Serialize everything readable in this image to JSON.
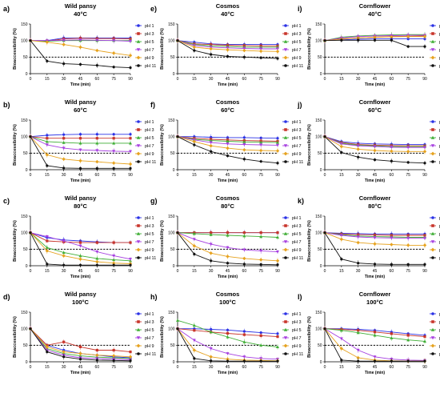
{
  "figure": {
    "xlabel": "Time (min)",
    "ylabel": "Bioaccessibility (%)",
    "legend_labels": [
      "pH 1",
      "pH 3",
      "pH 5",
      "pH 7",
      "pH 9",
      "pH 11"
    ],
    "colors": [
      "#2b32e6",
      "#c8352b",
      "#3fae35",
      "#a63fe0",
      "#e6a21e",
      "#111111"
    ]
  },
  "chart_data": [
    {
      "type": "line",
      "letter": "a)",
      "title": "Wild pansy",
      "subtitle": "40°C",
      "x": [
        0,
        15,
        30,
        45,
        60,
        75,
        90
      ],
      "xlim": [
        0,
        90
      ],
      "ylim": [
        0,
        150
      ],
      "yticks": [
        0,
        50,
        100,
        150
      ],
      "reference_line": 50,
      "legend": "right",
      "series": [
        {
          "name": "pH 1",
          "values": [
            100,
            100,
            108,
            108,
            108,
            108,
            108
          ]
        },
        {
          "name": "pH 3",
          "values": [
            100,
            98,
            105,
            107,
            106,
            106,
            105
          ]
        },
        {
          "name": "pH 5",
          "values": [
            100,
            98,
            100,
            100,
            100,
            100,
            100
          ]
        },
        {
          "name": "pH 7",
          "values": [
            100,
            100,
            101,
            102,
            101,
            100,
            98
          ]
        },
        {
          "name": "pH 9",
          "values": [
            100,
            95,
            88,
            80,
            70,
            62,
            55
          ]
        },
        {
          "name": "pH 11",
          "values": [
            100,
            38,
            30,
            28,
            25,
            20,
            18
          ]
        }
      ]
    },
    {
      "type": "line",
      "letter": "b)",
      "title": "Wild pansy",
      "subtitle": "60°C",
      "x": [
        0,
        15,
        30,
        45,
        60,
        75,
        90
      ],
      "xlim": [
        0,
        90
      ],
      "ylim": [
        0,
        150
      ],
      "yticks": [
        0,
        50,
        100,
        150
      ],
      "reference_line": 50,
      "legend": "right",
      "series": [
        {
          "name": "pH 1",
          "values": [
            100,
            104,
            106,
            107,
            107,
            107,
            107
          ]
        },
        {
          "name": "pH 3",
          "values": [
            100,
            95,
            95,
            95,
            95,
            95,
            95
          ]
        },
        {
          "name": "pH 5",
          "values": [
            100,
            85,
            82,
            80,
            80,
            80,
            80
          ]
        },
        {
          "name": "pH 7",
          "values": [
            100,
            75,
            65,
            60,
            58,
            56,
            55
          ]
        },
        {
          "name": "pH 9",
          "values": [
            100,
            45,
            32,
            27,
            24,
            20,
            17
          ]
        },
        {
          "name": "pH 11",
          "values": [
            100,
            12,
            5,
            4,
            4,
            4,
            4
          ]
        }
      ]
    },
    {
      "type": "line",
      "letter": "c)",
      "title": "Wild pansy",
      "subtitle": "80°C",
      "x": [
        0,
        15,
        30,
        45,
        60,
        75,
        90
      ],
      "xlim": [
        0,
        90
      ],
      "ylim": [
        0,
        150
      ],
      "yticks": [
        0,
        50,
        100,
        150
      ],
      "reference_line": 50,
      "legend": "right",
      "series": [
        {
          "name": "pH 1",
          "values": [
            100,
            85,
            78,
            75,
            72,
            70,
            70
          ]
        },
        {
          "name": "pH 3",
          "values": [
            100,
            75,
            72,
            70,
            70,
            70,
            70
          ]
        },
        {
          "name": "pH 5",
          "values": [
            100,
            55,
            40,
            30,
            22,
            18,
            15
          ]
        },
        {
          "name": "pH 7",
          "values": [
            100,
            88,
            75,
            60,
            42,
            30,
            20
          ]
        },
        {
          "name": "pH 9",
          "values": [
            100,
            45,
            30,
            20,
            12,
            8,
            6
          ]
        },
        {
          "name": "pH 11",
          "values": [
            100,
            5,
            2,
            2,
            2,
            2,
            2
          ]
        }
      ]
    },
    {
      "type": "line",
      "letter": "d)",
      "title": "Wild pansy",
      "subtitle": "100°C",
      "x": [
        0,
        15,
        30,
        45,
        60,
        75,
        90
      ],
      "xlim": [
        0,
        90
      ],
      "ylim": [
        0,
        150
      ],
      "yticks": [
        0,
        50,
        100,
        150
      ],
      "reference_line": 50,
      "legend": "right",
      "series": [
        {
          "name": "pH 1",
          "values": [
            100,
            50,
            35,
            25,
            20,
            15,
            12
          ]
        },
        {
          "name": "pH 3",
          "values": [
            100,
            50,
            60,
            45,
            35,
            35,
            30
          ]
        },
        {
          "name": "pH 5",
          "values": [
            100,
            40,
            25,
            18,
            14,
            12,
            10
          ]
        },
        {
          "name": "pH 7",
          "values": [
            100,
            35,
            20,
            12,
            10,
            8,
            6
          ]
        },
        {
          "name": "pH 9",
          "values": [
            100,
            45,
            30,
            25,
            20,
            18,
            15
          ]
        },
        {
          "name": "pH 11",
          "values": [
            100,
            30,
            15,
            8,
            5,
            4,
            3
          ]
        }
      ]
    },
    {
      "type": "line",
      "letter": "e)",
      "title": "Cosmos",
      "subtitle": "40°C",
      "x": [
        0,
        15,
        30,
        45,
        60,
        75,
        90
      ],
      "xlim": [
        0,
        90
      ],
      "ylim": [
        0,
        150
      ],
      "yticks": [
        0,
        50,
        100,
        150
      ],
      "reference_line": 50,
      "legend": "right",
      "series": [
        {
          "name": "pH 1",
          "values": [
            100,
            95,
            90,
            88,
            88,
            88,
            88
          ]
        },
        {
          "name": "pH 3",
          "values": [
            100,
            90,
            88,
            86,
            85,
            84,
            84
          ]
        },
        {
          "name": "pH 5",
          "values": [
            100,
            88,
            84,
            82,
            80,
            80,
            80
          ]
        },
        {
          "name": "pH 7",
          "values": [
            100,
            85,
            80,
            78,
            76,
            75,
            75
          ]
        },
        {
          "name": "pH 9",
          "values": [
            100,
            80,
            75,
            72,
            70,
            68,
            67
          ]
        },
        {
          "name": "pH 11",
          "values": [
            100,
            70,
            58,
            52,
            50,
            48,
            46
          ]
        }
      ]
    },
    {
      "type": "line",
      "letter": "f)",
      "title": "Cosmos",
      "subtitle": "60°C",
      "x": [
        0,
        15,
        30,
        45,
        60,
        75,
        90
      ],
      "xlim": [
        0,
        90
      ],
      "ylim": [
        0,
        150
      ],
      "yticks": [
        0,
        50,
        100,
        150
      ],
      "reference_line": 50,
      "legend": "right",
      "series": [
        {
          "name": "pH 1",
          "values": [
            100,
            100,
            98,
            97,
            97,
            96,
            95
          ]
        },
        {
          "name": "pH 3",
          "values": [
            100,
            95,
            92,
            90,
            88,
            87,
            86
          ]
        },
        {
          "name": "pH 5",
          "values": [
            100,
            92,
            88,
            86,
            84,
            83,
            82
          ]
        },
        {
          "name": "pH 7",
          "values": [
            100,
            90,
            82,
            78,
            76,
            75,
            74
          ]
        },
        {
          "name": "pH 9",
          "values": [
            100,
            85,
            72,
            65,
            60,
            58,
            57
          ]
        },
        {
          "name": "pH 11",
          "values": [
            100,
            75,
            55,
            42,
            32,
            25,
            20
          ]
        }
      ]
    },
    {
      "type": "line",
      "letter": "g)",
      "title": "Cosmos",
      "subtitle": "80°C",
      "x": [
        0,
        15,
        30,
        45,
        60,
        75,
        90
      ],
      "xlim": [
        0,
        90
      ],
      "ylim": [
        0,
        150
      ],
      "yticks": [
        0,
        50,
        100,
        150
      ],
      "reference_line": 50,
      "legend": "right",
      "series": [
        {
          "name": "pH 1",
          "values": [
            100,
            100,
            100,
            100,
            100,
            100,
            100
          ]
        },
        {
          "name": "pH 3",
          "values": [
            100,
            100,
            100,
            100,
            100,
            100,
            100
          ]
        },
        {
          "name": "pH 5",
          "values": [
            100,
            97,
            94,
            92,
            90,
            88,
            86
          ]
        },
        {
          "name": "pH 7",
          "values": [
            100,
            80,
            65,
            55,
            48,
            45,
            42
          ]
        },
        {
          "name": "pH 9",
          "values": [
            100,
            60,
            38,
            28,
            22,
            18,
            15
          ]
        },
        {
          "name": "pH 11",
          "values": [
            100,
            35,
            15,
            8,
            5,
            4,
            3
          ]
        }
      ]
    },
    {
      "type": "line",
      "letter": "h)",
      "title": "Cosmos",
      "subtitle": "100°C",
      "x": [
        0,
        15,
        30,
        45,
        60,
        75,
        90
      ],
      "xlim": [
        0,
        90
      ],
      "ylim": [
        0,
        150
      ],
      "yticks": [
        0,
        50,
        100,
        150
      ],
      "reference_line": 50,
      "legend": "right",
      "series": [
        {
          "name": "pH 1",
          "values": [
            100,
            100,
            98,
            96,
            92,
            88,
            85
          ]
        },
        {
          "name": "pH 3",
          "values": [
            100,
            95,
            90,
            86,
            82,
            79,
            76
          ]
        },
        {
          "name": "pH 5",
          "values": [
            125,
            110,
            90,
            75,
            60,
            50,
            45
          ]
        },
        {
          "name": "pH 7",
          "values": [
            100,
            65,
            40,
            25,
            15,
            10,
            8
          ]
        },
        {
          "name": "pH 9",
          "values": [
            100,
            35,
            15,
            8,
            5,
            4,
            3
          ]
        },
        {
          "name": "pH 11",
          "values": [
            100,
            10,
            3,
            2,
            2,
            2,
            2
          ]
        }
      ]
    },
    {
      "type": "line",
      "letter": "i)",
      "title": "Cornflower",
      "subtitle": "40°C",
      "x": [
        0,
        15,
        30,
        45,
        60,
        75,
        90
      ],
      "xlim": [
        0,
        90
      ],
      "ylim": [
        0,
        150
      ],
      "yticks": [
        0,
        50,
        100,
        150
      ],
      "reference_line": 50,
      "legend": "right",
      "series": [
        {
          "name": "pH 1",
          "values": [
            100,
            102,
            104,
            105,
            105,
            105,
            105
          ]
        },
        {
          "name": "pH 3",
          "values": [
            100,
            105,
            108,
            110,
            112,
            113,
            114
          ]
        },
        {
          "name": "pH 5",
          "values": [
            100,
            110,
            114,
            116,
            117,
            118,
            118
          ]
        },
        {
          "name": "pH 7",
          "values": [
            100,
            108,
            112,
            114,
            115,
            116,
            116
          ]
        },
        {
          "name": "pH 9",
          "values": [
            100,
            104,
            108,
            110,
            111,
            112,
            112
          ]
        },
        {
          "name": "pH 11",
          "values": [
            100,
            101,
            101,
            101,
            101,
            82,
            82
          ]
        }
      ]
    },
    {
      "type": "line",
      "letter": "j)",
      "title": "Cornflower",
      "subtitle": "60°C",
      "x": [
        0,
        15,
        30,
        45,
        60,
        75,
        90
      ],
      "xlim": [
        0,
        90
      ],
      "ylim": [
        0,
        150
      ],
      "yticks": [
        0,
        50,
        100,
        150
      ],
      "reference_line": 50,
      "legend": "right",
      "series": [
        {
          "name": "pH 1",
          "values": [
            100,
            85,
            80,
            78,
            77,
            76,
            76
          ]
        },
        {
          "name": "pH 3",
          "values": [
            100,
            82,
            76,
            74,
            73,
            72,
            72
          ]
        },
        {
          "name": "pH 5",
          "values": [
            100,
            80,
            74,
            72,
            70,
            70,
            70
          ]
        },
        {
          "name": "pH 7",
          "values": [
            100,
            78,
            72,
            70,
            68,
            67,
            67
          ]
        },
        {
          "name": "pH 9",
          "values": [
            100,
            70,
            62,
            58,
            56,
            55,
            55
          ]
        },
        {
          "name": "pH 11",
          "values": [
            100,
            52,
            38,
            30,
            26,
            22,
            20
          ]
        }
      ]
    },
    {
      "type": "line",
      "letter": "k)",
      "title": "Cornflower",
      "subtitle": "80°C",
      "x": [
        0,
        15,
        30,
        45,
        60,
        75,
        90
      ],
      "xlim": [
        0,
        90
      ],
      "ylim": [
        0,
        150
      ],
      "yticks": [
        0,
        50,
        100,
        150
      ],
      "reference_line": 50,
      "legend": "right",
      "series": [
        {
          "name": "pH 1",
          "values": [
            100,
            98,
            97,
            96,
            96,
            96,
            96
          ]
        },
        {
          "name": "pH 3",
          "values": [
            100,
            96,
            94,
            93,
            92,
            92,
            92
          ]
        },
        {
          "name": "pH 5",
          "values": [
            100,
            94,
            90,
            88,
            87,
            86,
            86
          ]
        },
        {
          "name": "pH 7",
          "values": [
            100,
            92,
            87,
            85,
            84,
            83,
            83
          ]
        },
        {
          "name": "pH 9",
          "values": [
            100,
            80,
            70,
            66,
            64,
            62,
            62
          ]
        },
        {
          "name": "pH 11",
          "values": [
            100,
            20,
            8,
            5,
            4,
            4,
            4
          ]
        }
      ]
    },
    {
      "type": "line",
      "letter": "l)",
      "title": "Cornflower",
      "subtitle": "100°C",
      "x": [
        0,
        15,
        30,
        45,
        60,
        75,
        90
      ],
      "xlim": [
        0,
        90
      ],
      "ylim": [
        0,
        150
      ],
      "yticks": [
        0,
        50,
        100,
        150
      ],
      "reference_line": 50,
      "legend": "right",
      "series": [
        {
          "name": "pH 1",
          "values": [
            100,
            100,
            98,
            95,
            90,
            85,
            80
          ]
        },
        {
          "name": "pH 3",
          "values": [
            100,
            98,
            95,
            90,
            85,
            80,
            76
          ]
        },
        {
          "name": "pH 5",
          "values": [
            100,
            95,
            88,
            80,
            72,
            66,
            62
          ]
        },
        {
          "name": "pH 7",
          "values": [
            100,
            70,
            35,
            15,
            8,
            5,
            4
          ]
        },
        {
          "name": "pH 9",
          "values": [
            100,
            40,
            12,
            5,
            3,
            2,
            2
          ]
        },
        {
          "name": "pH 11",
          "values": [
            100,
            5,
            2,
            2,
            2,
            2,
            2
          ]
        }
      ]
    }
  ]
}
